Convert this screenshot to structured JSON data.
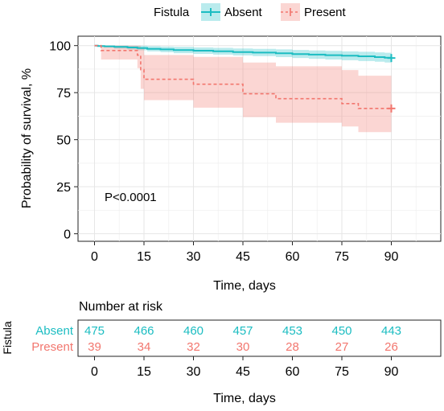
{
  "chart_data": [
    {
      "type": "line",
      "subtype": "kaplan-meier",
      "title": "",
      "xlabel": "Time, days",
      "ylabel": "Probability of survival, %",
      "xlim": [
        -5,
        105
      ],
      "ylim": [
        -4,
        105
      ],
      "x_ticks": [
        0,
        15,
        30,
        45,
        60,
        75,
        90
      ],
      "y_ticks": [
        0,
        25,
        50,
        75,
        100
      ],
      "grid": true,
      "legend": {
        "title": "Fistula",
        "placement": "top"
      },
      "annotation": "P<0.0001",
      "series": [
        {
          "name": "Absent",
          "color": "#1CBDC2",
          "line_style": "solid",
          "x": [
            0,
            1,
            3,
            6,
            10,
            13,
            16,
            20,
            24,
            30,
            36,
            42,
            48,
            55,
            60,
            65,
            70,
            75,
            80,
            85,
            88,
            90
          ],
          "y": [
            100,
            99.8,
            99.6,
            99.3,
            99.0,
            98.7,
            98.3,
            98.0,
            97.6,
            97.3,
            97.0,
            96.6,
            96.3,
            95.9,
            95.5,
            95.2,
            94.9,
            94.6,
            94.3,
            93.9,
            93.6,
            93.4
          ],
          "ci_upper": [
            100,
            100,
            100,
            100,
            100,
            99.9,
            99.7,
            99.5,
            99.3,
            99.0,
            98.8,
            98.5,
            98.3,
            98.0,
            97.7,
            97.4,
            97.2,
            96.9,
            96.7,
            96.4,
            96.2,
            96.0
          ],
          "ci_lower": [
            100,
            99.6,
            99.0,
            98.4,
            97.9,
            97.5,
            96.9,
            96.5,
            96.0,
            95.6,
            95.2,
            94.8,
            94.4,
            93.9,
            93.4,
            93.0,
            92.6,
            92.2,
            91.8,
            91.4,
            91.0,
            90.7
          ],
          "censor_x": [
            90
          ]
        },
        {
          "name": "Present",
          "color": "#F2766E",
          "line_style": "dashed",
          "x": [
            0,
            2,
            13,
            14,
            15,
            30,
            45,
            55,
            75,
            80,
            90
          ],
          "y": [
            100,
            97.4,
            94.9,
            87.2,
            82.1,
            79.5,
            74.4,
            71.8,
            69.2,
            66.6,
            66.6
          ],
          "ci_upper": [
            100,
            100,
            100,
            98.5,
            95.0,
            94.0,
            91.0,
            89.0,
            87.0,
            84.0,
            84.0
          ],
          "ci_lower": [
            100,
            92.6,
            88.0,
            77.0,
            71.0,
            67.0,
            62.0,
            59.0,
            57.0,
            54.0,
            54.0
          ],
          "censor_x": [
            90
          ]
        }
      ]
    },
    {
      "type": "table",
      "title": "Number at risk",
      "xlabel": "Time, days",
      "ylabel": "Fistula",
      "x_ticks": [
        0,
        15,
        30,
        45,
        60,
        75,
        90
      ],
      "rows": [
        {
          "name": "Absent",
          "color": "#1CBDC2",
          "values": [
            475,
            466,
            460,
            457,
            453,
            450,
            443
          ]
        },
        {
          "name": "Present",
          "color": "#F2766E",
          "values": [
            39,
            34,
            32,
            30,
            28,
            27,
            26
          ]
        }
      ]
    }
  ]
}
